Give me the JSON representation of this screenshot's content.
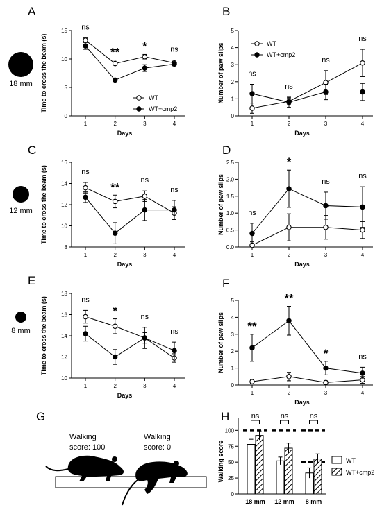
{
  "chart_data": [
    {
      "panel": "A",
      "type": "line",
      "x": [
        1,
        2,
        3,
        4
      ],
      "series": [
        {
          "name": "WT",
          "values": [
            13.3,
            9.2,
            10.4,
            9.3
          ],
          "err": [
            0.4,
            0.6,
            0.4,
            0.5
          ]
        },
        {
          "name": "WT+cmp2",
          "values": [
            12.3,
            6.3,
            8.4,
            9.1
          ],
          "err": [
            0.6,
            0.2,
            0.6,
            0.5
          ]
        }
      ],
      "ylim": [
        0,
        15
      ],
      "yticks": [
        0,
        5,
        10,
        15
      ],
      "xlabel": "Days",
      "ylabel": "Time to cross the beam (s)",
      "annotations": [
        "ns",
        "**",
        "*",
        "ns"
      ],
      "legend": [
        "WT",
        "WT+cmp2"
      ]
    },
    {
      "panel": "B",
      "type": "line",
      "x": [
        1,
        2,
        3,
        4
      ],
      "series": [
        {
          "name": "WT",
          "values": [
            0.45,
            0.85,
            1.95,
            3.1
          ],
          "err": [
            0.3,
            0.2,
            0.7,
            0.8
          ]
        },
        {
          "name": "WT+cmp2",
          "values": [
            1.3,
            0.8,
            1.4,
            1.4
          ],
          "err": [
            0.55,
            0.3,
            0.45,
            0.5
          ]
        }
      ],
      "ylim": [
        0,
        5
      ],
      "yticks": [
        0,
        1,
        2,
        3,
        4,
        5
      ],
      "xlabel": "Days",
      "ylabel": "Number of paw slips",
      "annotations": [
        "ns",
        "ns",
        "ns",
        "ns"
      ],
      "legend": [
        "WT",
        "WT+cmp2"
      ]
    },
    {
      "panel": "C",
      "type": "line",
      "x": [
        1,
        2,
        3,
        4
      ],
      "series": [
        {
          "name": "WT",
          "values": [
            13.6,
            12.3,
            12.8,
            11.2
          ],
          "err": [
            0.5,
            0.6,
            0.5,
            0.6
          ]
        },
        {
          "name": "WT+cmp2",
          "values": [
            12.7,
            9.3,
            11.5,
            11.5
          ],
          "err": [
            0.5,
            1.0,
            1.0,
            0.9
          ]
        }
      ],
      "ylim": [
        8,
        16
      ],
      "yticks": [
        8,
        10,
        12,
        14,
        16
      ],
      "xlabel": "Days",
      "ylabel": "Time to cross the beam (s)",
      "annotations": [
        "ns",
        "**",
        "ns",
        "ns"
      ]
    },
    {
      "panel": "D",
      "type": "line",
      "x": [
        1,
        2,
        3,
        4
      ],
      "series": [
        {
          "name": "WT",
          "values": [
            0.05,
            0.58,
            0.58,
            0.5
          ],
          "err": [
            0.1,
            0.4,
            0.35,
            0.25
          ]
        },
        {
          "name": "WT+cmp2",
          "values": [
            0.4,
            1.72,
            1.22,
            1.18
          ],
          "err": [
            0.3,
            0.55,
            0.4,
            0.6
          ]
        }
      ],
      "ylim": [
        0,
        2.5
      ],
      "yticks": [
        "0.0",
        "0.5",
        "1.0",
        "1.5",
        "2.0",
        "2.5"
      ],
      "xlabel": "Days",
      "ylabel": "Number of paw slips",
      "annotations": [
        "ns",
        "*",
        "ns",
        "ns"
      ]
    },
    {
      "panel": "E",
      "type": "line",
      "x": [
        1,
        2,
        3,
        4
      ],
      "series": [
        {
          "name": "WT",
          "values": [
            15.8,
            14.9,
            13.8,
            11.9
          ],
          "err": [
            0.6,
            0.7,
            0.5,
            0.4
          ]
        },
        {
          "name": "WT+cmp2",
          "values": [
            14.2,
            12.0,
            13.8,
            12.6
          ],
          "err": [
            0.7,
            0.7,
            1.0,
            0.8
          ]
        }
      ],
      "ylim": [
        10,
        18
      ],
      "yticks": [
        10,
        12,
        14,
        16,
        18
      ],
      "xlabel": "Days",
      "ylabel": "Time to cross the beam (s)",
      "annotations": [
        "ns",
        "*",
        "ns",
        "ns"
      ]
    },
    {
      "panel": "F",
      "type": "line",
      "x": [
        1,
        2,
        3,
        4
      ],
      "series": [
        {
          "name": "WT",
          "values": [
            0.2,
            0.5,
            0.15,
            0.3
          ],
          "err": [
            0.1,
            0.25,
            0.1,
            0.2
          ]
        },
        {
          "name": "WT+cmp2",
          "values": [
            2.2,
            3.8,
            1.0,
            0.7
          ],
          "err": [
            0.8,
            0.85,
            0.4,
            0.35
          ]
        }
      ],
      "ylim": [
        0,
        5
      ],
      "yticks": [
        0,
        1,
        2,
        3,
        4,
        5
      ],
      "xlabel": "Days",
      "ylabel": "Number of paw slips",
      "annotations": [
        "**",
        "**",
        "*",
        "ns"
      ]
    },
    {
      "panel": "H",
      "type": "bar",
      "categories": [
        "18 mm",
        "12 mm",
        "8 mm"
      ],
      "series": [
        {
          "name": "WT",
          "values": [
            78,
            52,
            33
          ],
          "err": [
            8,
            6,
            8
          ]
        },
        {
          "name": "WT+cmp2",
          "values": [
            92,
            72,
            55
          ],
          "err": [
            7,
            8,
            8
          ]
        }
      ],
      "ylim": [
        0,
        120
      ],
      "yticks": [
        0,
        25,
        50,
        75,
        100
      ],
      "ylabel": "Walking score",
      "reference_levels": [
        100,
        50
      ],
      "annotations": [
        "ns",
        "ns",
        "ns"
      ],
      "legend": [
        "WT",
        "WT+cmp2"
      ]
    }
  ],
  "panel_labels": [
    "A",
    "B",
    "C",
    "D",
    "E",
    "F",
    "G",
    "H"
  ],
  "beam_sizes": [
    "18 mm",
    "12 mm",
    "8 mm"
  ],
  "panel_g": {
    "score_high": "Walking\nscore: 100",
    "score_low": "Walking\nscore: 0"
  },
  "colors": {
    "ink": "#000000",
    "open_marker": "#ffffff"
  }
}
